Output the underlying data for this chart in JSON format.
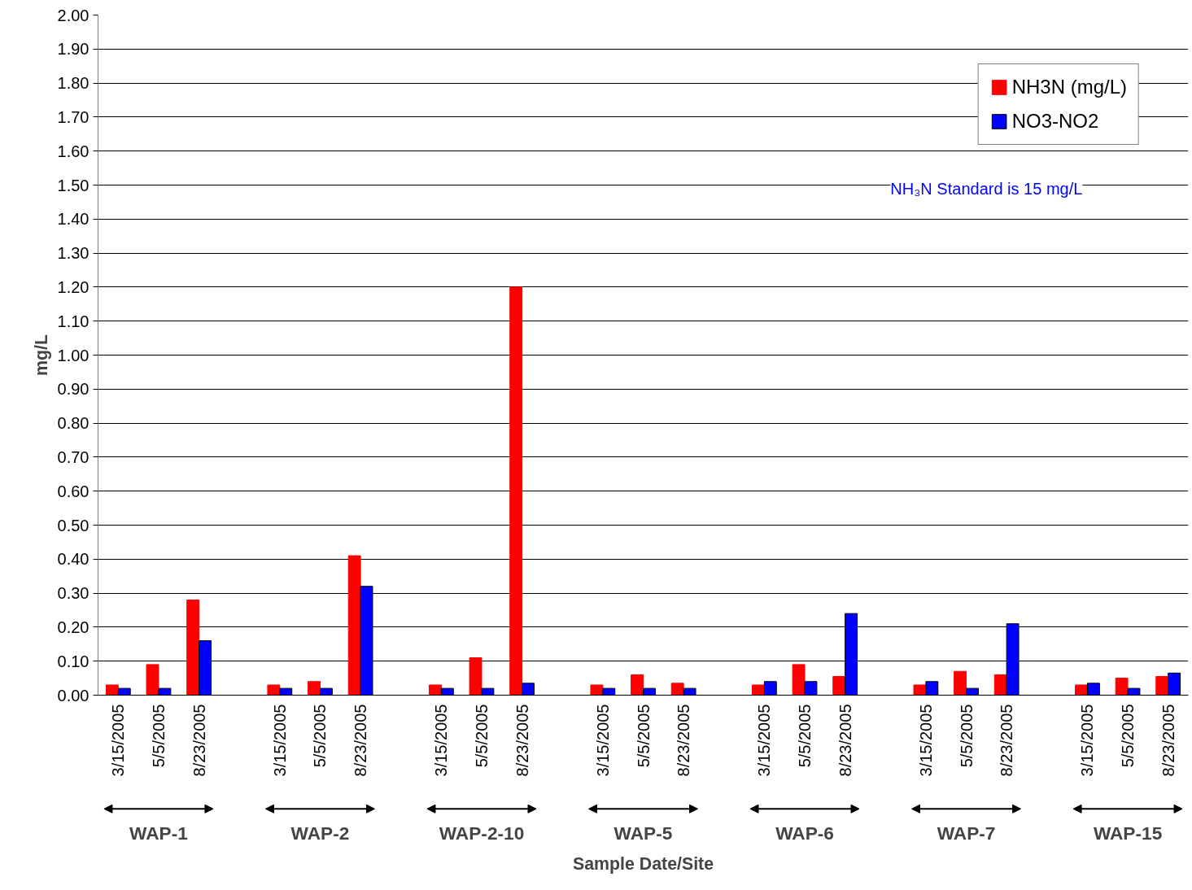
{
  "chart_data": {
    "type": "bar",
    "xlabel": "Sample Date/Site",
    "ylabel": "mg/L",
    "categories": [
      "3/15/2005",
      "5/5/2005",
      "8/23/2005",
      null,
      "3/15/2005",
      "5/5/2005",
      "8/23/2005",
      null,
      "3/15/2005",
      "5/5/2005",
      "8/23/2005",
      null,
      "3/15/2005",
      "5/5/2005",
      "8/23/2005",
      null,
      "3/15/2005",
      "5/5/2005",
      "8/23/2005",
      null,
      "3/15/2005",
      "5/5/2005",
      "8/23/2005",
      null,
      "3/15/2005",
      "5/5/2005",
      "8/23/2005"
    ],
    "series": [
      {
        "name": "NH3N (mg/L)",
        "color": "#ff0000",
        "values": [
          0.03,
          0.09,
          0.28,
          null,
          0.03,
          0.04,
          0.41,
          null,
          0.03,
          0.11,
          1.2,
          null,
          0.03,
          0.06,
          0.035,
          null,
          0.03,
          0.09,
          0.055,
          null,
          0.03,
          0.07,
          0.06,
          null,
          0.03,
          0.05,
          0.055
        ]
      },
      {
        "name": "NO3-NO2",
        "color": "#0000ff",
        "values": [
          0.02,
          0.02,
          0.16,
          null,
          0.02,
          0.02,
          0.32,
          null,
          0.02,
          0.02,
          0.035,
          null,
          0.02,
          0.02,
          0.02,
          null,
          0.04,
          0.04,
          0.24,
          null,
          0.04,
          0.02,
          0.21,
          null,
          0.035,
          0.02,
          0.065
        ]
      }
    ],
    "ylim": [
      0,
      2
    ],
    "yticks": [
      {
        "value": 0,
        "label": "0.00"
      },
      {
        "value": 0.1,
        "label": "0.10"
      },
      {
        "value": 0.2,
        "label": "0.20"
      },
      {
        "value": 0.3,
        "label": "0.30"
      },
      {
        "value": 0.4,
        "label": "0.40"
      },
      {
        "value": 0.5,
        "label": "0.50"
      },
      {
        "value": 0.6,
        "label": "0.60"
      },
      {
        "value": 0.7,
        "label": "0.70"
      },
      {
        "value": 0.8,
        "label": "0.80"
      },
      {
        "value": 0.9,
        "label": "0.90"
      },
      {
        "value": 1.0,
        "label": "1.00"
      },
      {
        "value": 1.1,
        "label": "1.10"
      },
      {
        "value": 1.2,
        "label": "1.20"
      },
      {
        "value": 1.3,
        "label": "1.30"
      },
      {
        "value": 1.4,
        "label": "1.40"
      },
      {
        "value": 1.5,
        "label": "1.50"
      },
      {
        "value": 1.6,
        "label": "1.60"
      },
      {
        "value": 1.7,
        "label": "1.70"
      },
      {
        "value": 1.8,
        "label": "1.80"
      },
      {
        "value": 1.9,
        "label": "1.90"
      },
      {
        "value": 2.0,
        "label": "2.00"
      }
    ],
    "annotations": [
      "WAP-1",
      "WAP-2",
      "WAP-2-10",
      "WAP-5",
      "WAP-6",
      "WAP-7",
      "WAP-15",
      "NH₃N Standard is 15 mg/L"
    ],
    "grid": "y",
    "legend": "top right"
  }
}
